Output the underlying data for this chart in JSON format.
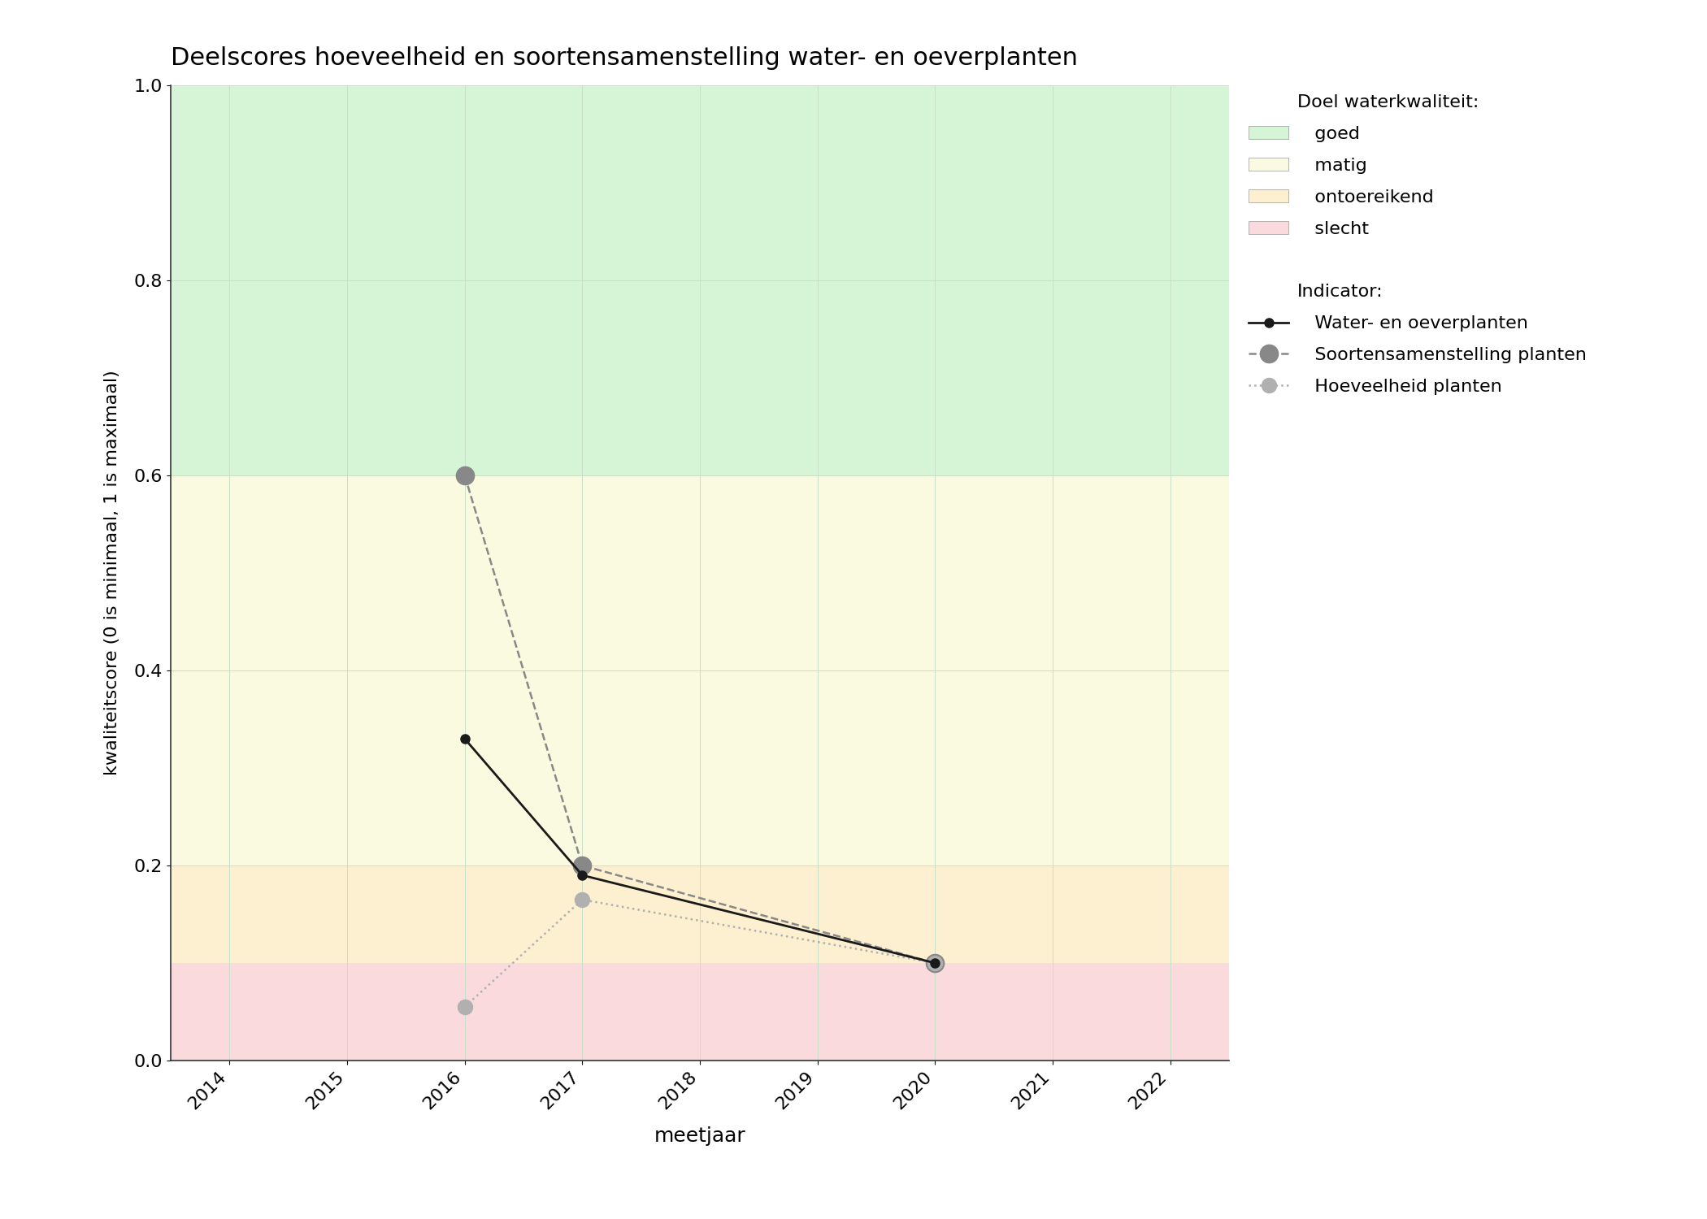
{
  "title": "Deelscores hoeveelheid en soortensamenstelling water- en oeverplanten",
  "xlabel": "meetjaar",
  "ylabel": "kwaliteitscore (0 is minimaal, 1 is maximaal)",
  "xlim": [
    2013.5,
    2022.5
  ],
  "ylim": [
    0.0,
    1.0
  ],
  "xticks": [
    2014,
    2015,
    2016,
    2017,
    2018,
    2019,
    2020,
    2021,
    2022
  ],
  "yticks": [
    0.0,
    0.2,
    0.4,
    0.6,
    0.8,
    1.0
  ],
  "bg_bands": [
    {
      "ymin": 0.6,
      "ymax": 1.0,
      "color": "#d6f5d6",
      "label": "goed"
    },
    {
      "ymin": 0.2,
      "ymax": 0.6,
      "color": "#fafae0",
      "label": "matig"
    },
    {
      "ymin": 0.1,
      "ymax": 0.2,
      "color": "#fdf0d0",
      "label": "ontoereikend"
    },
    {
      "ymin": 0.0,
      "ymax": 0.1,
      "color": "#fadadd",
      "label": "slecht"
    }
  ],
  "series": [
    {
      "label": "Water- en oeverplanten",
      "x": [
        2016,
        2017,
        2020
      ],
      "y": [
        0.33,
        0.19,
        0.1
      ],
      "color": "#1a1a1a",
      "linestyle": "solid",
      "linewidth": 2.0,
      "markersize": 8,
      "marker": "o",
      "zorder": 5
    },
    {
      "label": "Soortensamenstelling planten",
      "x": [
        2016,
        2017,
        2020
      ],
      "y": [
        0.6,
        0.2,
        0.1
      ],
      "color": "#888888",
      "linestyle": "dashed",
      "linewidth": 1.8,
      "markersize": 16,
      "marker": "o",
      "zorder": 4
    },
    {
      "label": "Hoeveelheid planten",
      "x": [
        2016,
        2017,
        2020
      ],
      "y": [
        0.055,
        0.165,
        0.1
      ],
      "color": "#b0b0b0",
      "linestyle": "dotted",
      "linewidth": 1.8,
      "markersize": 13,
      "marker": "o",
      "zorder": 4
    }
  ],
  "legend_title_quality": "Doel waterkwaliteit:",
  "legend_title_indicator": "Indicator:",
  "fig_bgcolor": "#ffffff",
  "grid_color": "#c8e0c8",
  "grid_linewidth": 0.7,
  "title_fontsize": 22,
  "axis_label_fontsize": 18,
  "tick_fontsize": 16,
  "legend_fontsize": 16
}
